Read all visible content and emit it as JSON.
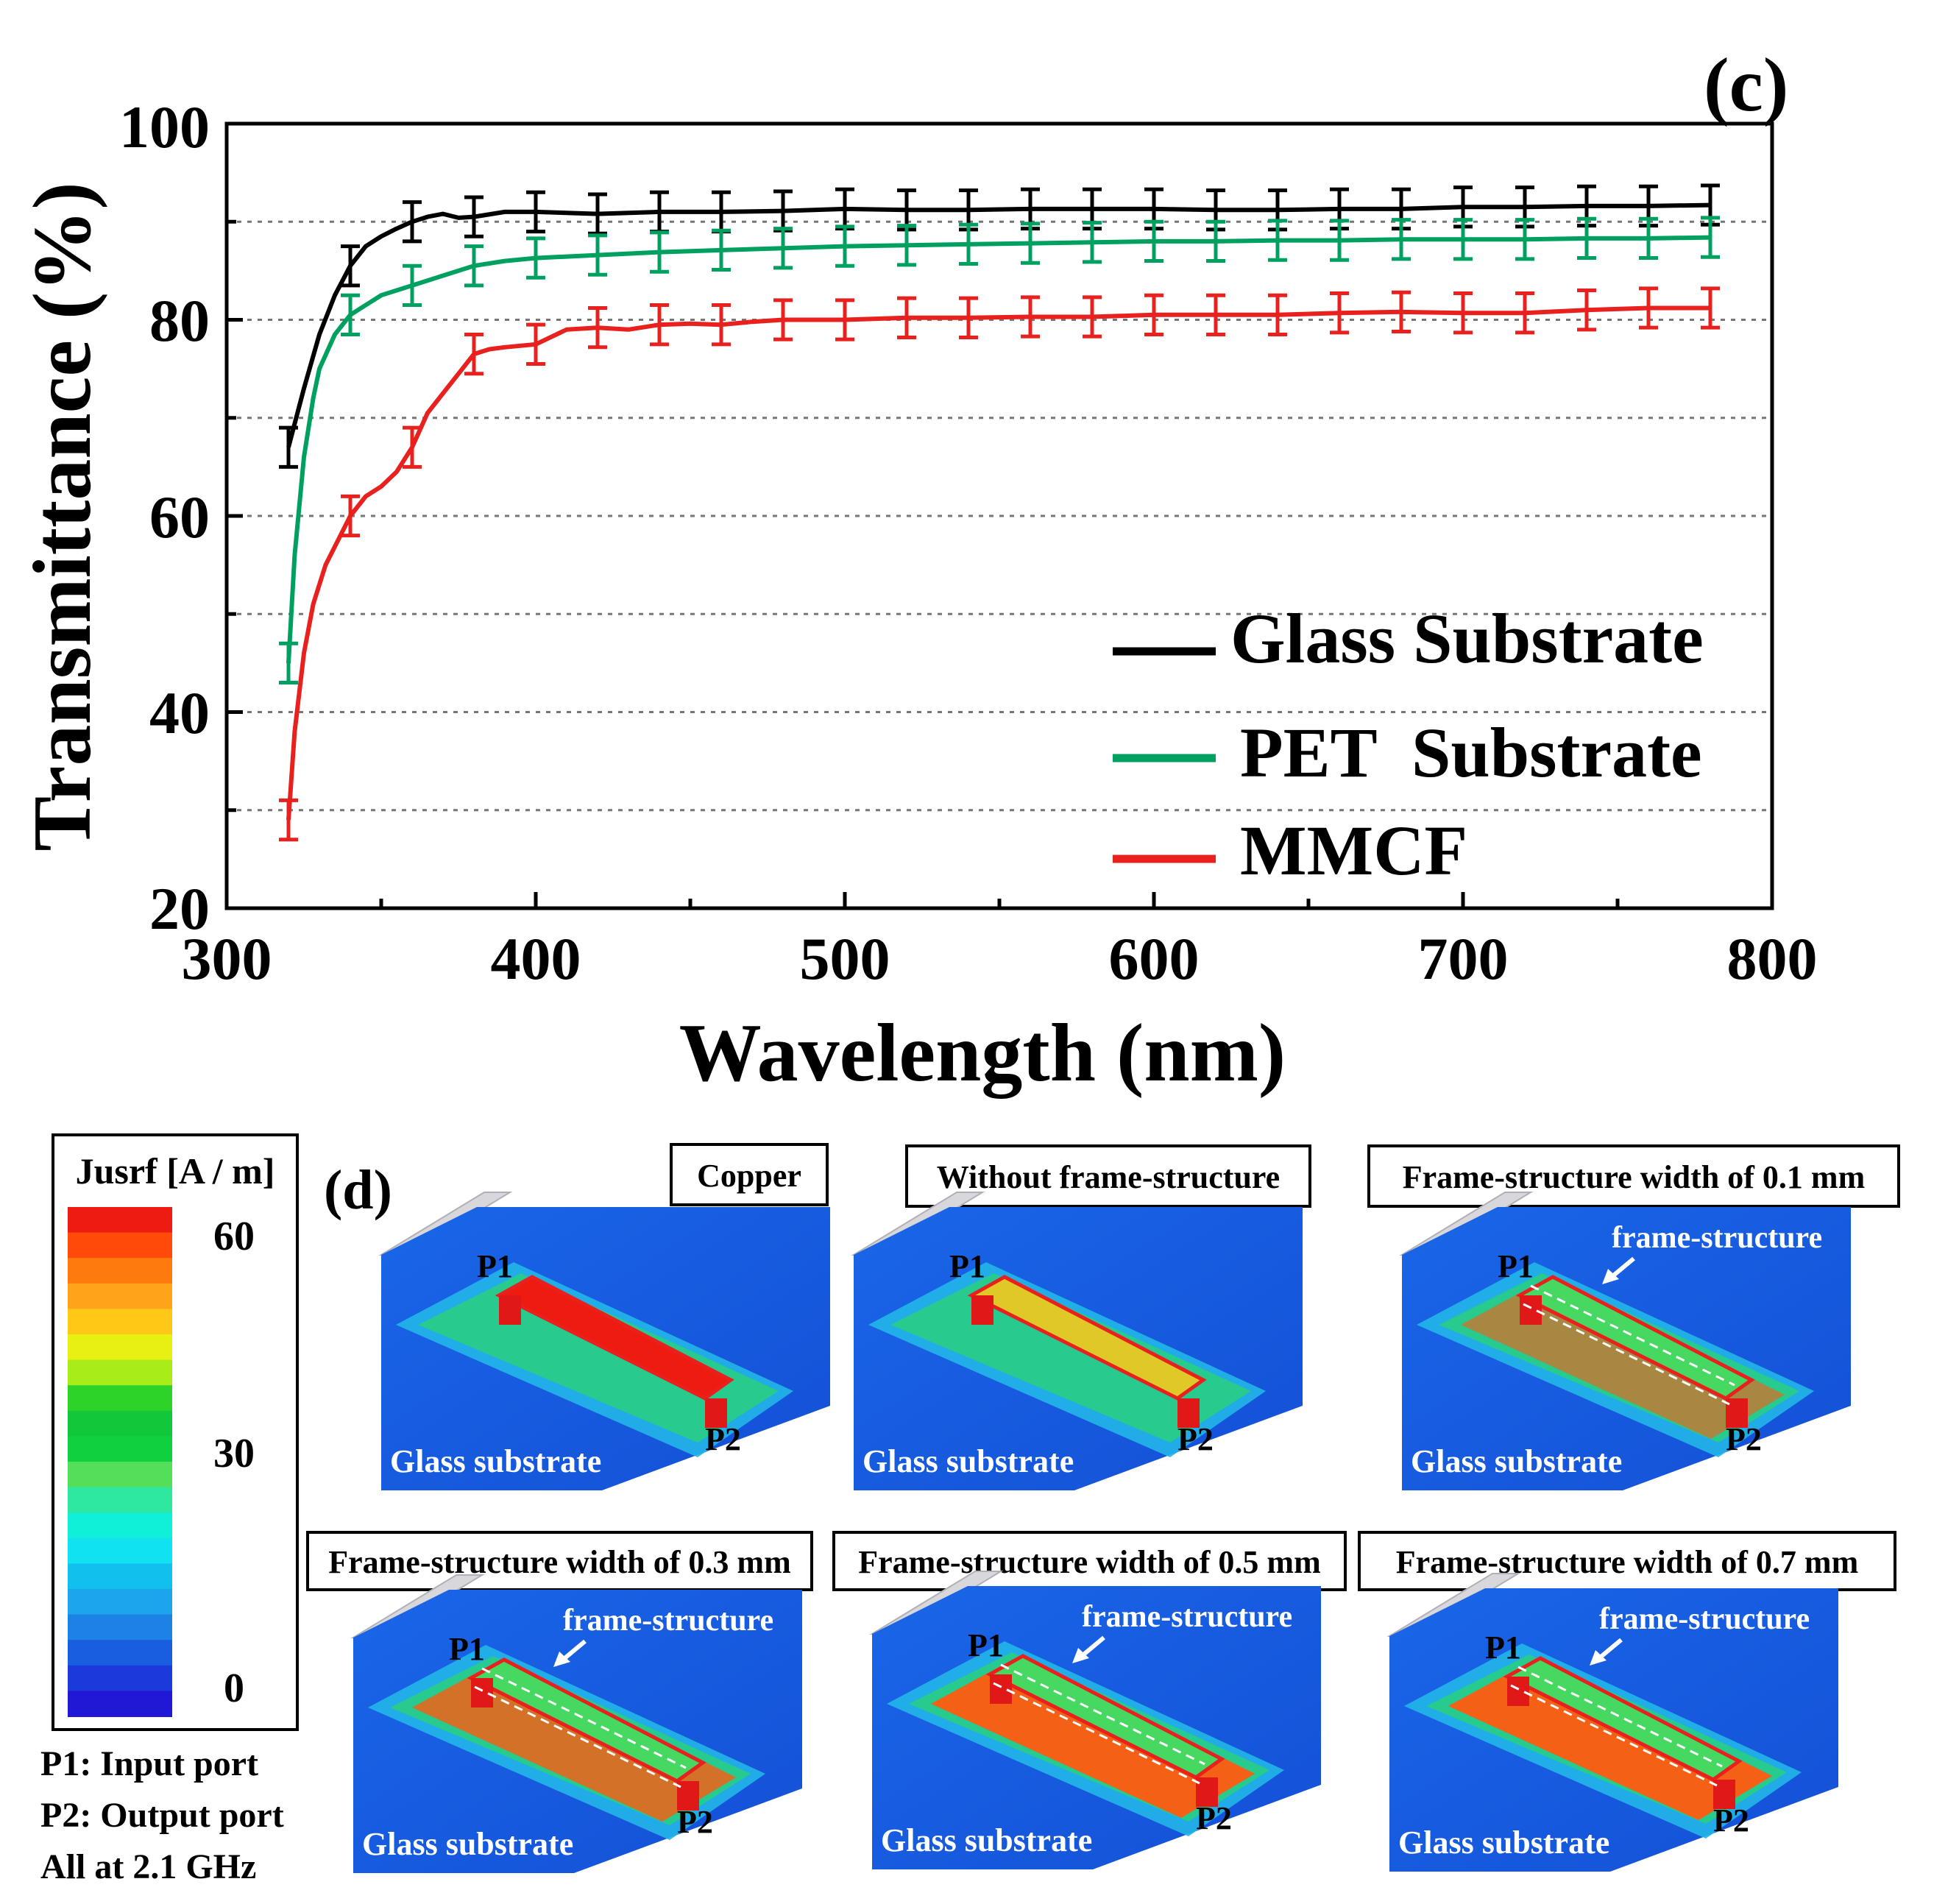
{
  "chart_data": {
    "type": "line",
    "panel_label": "(c)",
    "xlabel": "Wavelength (nm)",
    "ylabel": "Transmittance (%)",
    "xlim": [
      300,
      800
    ],
    "ylim": [
      20,
      100
    ],
    "x_ticks": [
      "300",
      "400",
      "500",
      "600",
      "700",
      "800"
    ],
    "y_ticks": [
      "20",
      "40",
      "60",
      "80",
      "100"
    ],
    "grid": "dotted horizontal at 30, 40, 50, 60, 70, 80, 90",
    "legend_position": "lower-right",
    "error_bar_x": [
      320,
      340,
      360,
      380,
      400,
      420,
      440,
      460,
      480,
      500,
      520,
      540,
      560,
      580,
      600,
      620,
      640,
      660,
      680,
      700,
      720,
      740,
      760,
      780
    ],
    "series": [
      {
        "name": "Glass Substrate",
        "color": "#000000",
        "x": [
          320,
          325,
          330,
          335,
          340,
          345,
          350,
          355,
          360,
          365,
          370,
          375,
          380,
          390,
          400,
          420,
          440,
          460,
          480,
          500,
          520,
          540,
          560,
          580,
          600,
          620,
          640,
          660,
          680,
          700,
          720,
          740,
          760,
          780
        ],
        "y": [
          67,
          73,
          78.5,
          82.5,
          85.5,
          87.5,
          88.5,
          89.3,
          90,
          90.5,
          90.8,
          90.4,
          90.5,
          91,
          91,
          90.8,
          91,
          91,
          91.1,
          91.3,
          91.2,
          91.2,
          91.3,
          91.3,
          91.3,
          91.2,
          91.2,
          91.3,
          91.3,
          91.5,
          91.5,
          91.6,
          91.6,
          91.7
        ],
        "error": 2
      },
      {
        "name": "PET  Substrate",
        "color": "#00a060",
        "x": [
          320,
          322,
          325,
          328,
          330,
          335,
          340,
          345,
          350,
          360,
          370,
          380,
          390,
          400,
          420,
          440,
          460,
          480,
          500,
          520,
          540,
          560,
          580,
          600,
          620,
          640,
          660,
          680,
          700,
          720,
          740,
          760,
          780
        ],
        "y": [
          45,
          56,
          66,
          72,
          75,
          78.5,
          80.5,
          81.5,
          82.5,
          83.5,
          84.5,
          85.5,
          86,
          86.3,
          86.6,
          86.9,
          87.1,
          87.3,
          87.5,
          87.6,
          87.7,
          87.8,
          87.9,
          88,
          88,
          88.1,
          88.1,
          88.2,
          88.2,
          88.2,
          88.3,
          88.3,
          88.4
        ],
        "error": 2
      },
      {
        "name": "MMCF",
        "color": "#e8201e",
        "x": [
          320,
          322,
          325,
          328,
          332,
          336,
          340,
          345,
          350,
          355,
          360,
          365,
          370,
          375,
          380,
          385,
          390,
          400,
          410,
          420,
          430,
          440,
          450,
          460,
          470,
          480,
          500,
          520,
          540,
          560,
          580,
          600,
          620,
          640,
          660,
          680,
          700,
          720,
          740,
          760,
          780
        ],
        "y": [
          29,
          38,
          46,
          51,
          55,
          57.5,
          60,
          62,
          63,
          64.5,
          67,
          70.5,
          72.5,
          74.5,
          76.5,
          77,
          77.2,
          77.5,
          79,
          79.2,
          79,
          79.5,
          79.6,
          79.5,
          79.8,
          80,
          80,
          80.2,
          80.2,
          80.3,
          80.3,
          80.5,
          80.5,
          80.5,
          80.7,
          80.8,
          80.7,
          80.7,
          81,
          81.2,
          81.2
        ],
        "error": 2
      }
    ]
  },
  "panel_d": {
    "label": "(d)",
    "colorbar": {
      "title": "Jusrf [A / m]",
      "ticks": [
        "60",
        "30",
        "0"
      ],
      "colors": [
        "#ee1c10",
        "#ff4a0a",
        "#ff7a0c",
        "#ffa41a",
        "#ffc816",
        "#e8ef12",
        "#a8ec18",
        "#2ed32a",
        "#12c83a",
        "#10d040",
        "#54df5a",
        "#2ee8a0",
        "#10f0d8",
        "#10e2f2",
        "#12c0ee",
        "#1ca4ec",
        "#1c82e6",
        "#1a5ee0",
        "#1c3ada",
        "#2018d4"
      ]
    },
    "notes": [
      "P1: Input port",
      "P2: Output port",
      "All at 2.1 GHz"
    ],
    "port_in": "P1",
    "port_out": "P2",
    "substrate_label": "Glass substrate",
    "frame_label": "frame-structure",
    "panels": [
      {
        "title": "Copper"
      },
      {
        "title": "Without frame-structure"
      },
      {
        "title": "Frame-structure width of 0.1 mm"
      },
      {
        "title": "Frame-structure width of 0.3 mm"
      },
      {
        "title": "Frame-structure width of 0.5 mm"
      },
      {
        "title": "Frame-structure width of 0.7 mm"
      }
    ]
  }
}
